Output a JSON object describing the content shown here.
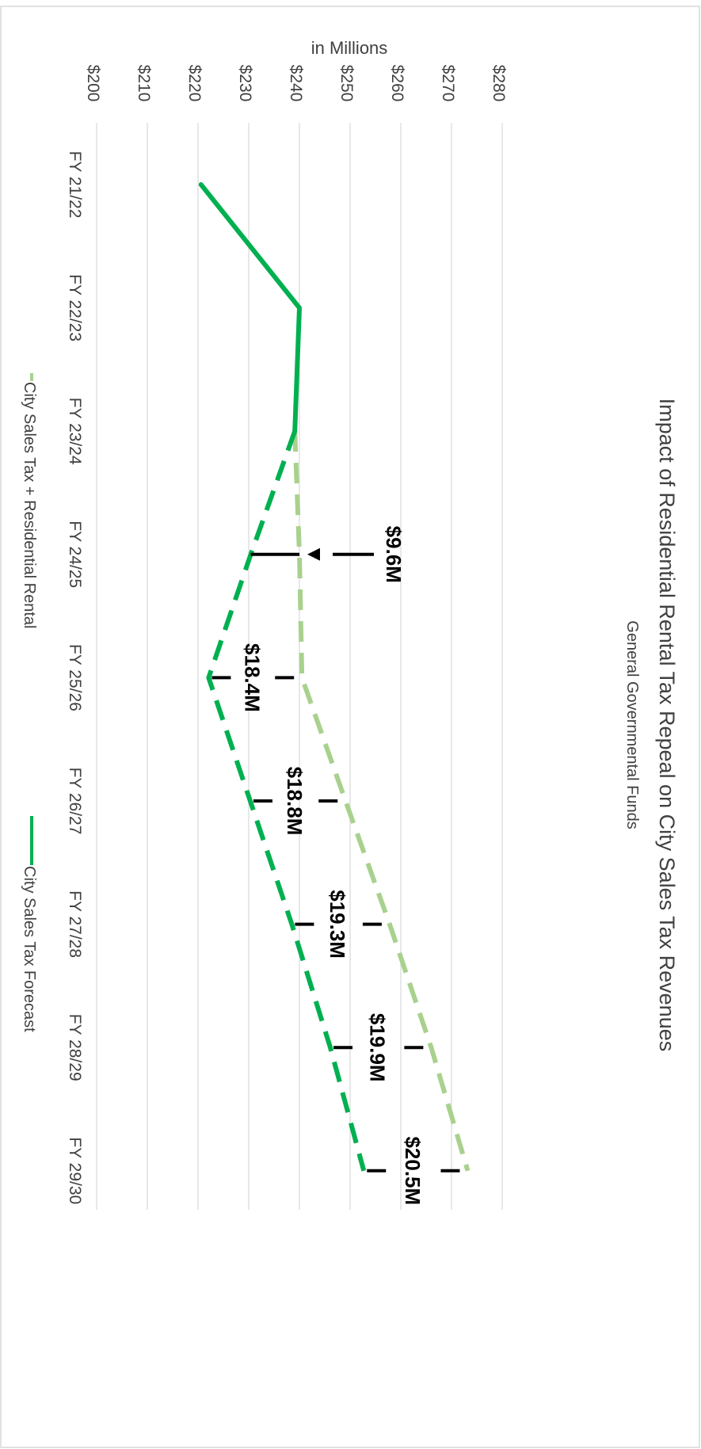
{
  "chart_data": {
    "type": "line",
    "orientation": "rotated-90-clockwise",
    "title": "Impact of Residential Rental Tax Repeal on City Sales Tax Revenues",
    "subtitle": "General Governmental Funds",
    "ylabel": "in Millions",
    "xlabel": "",
    "categories": [
      "FY 21/22",
      "FY 22/23",
      "FY 23/24",
      "FY 24/25",
      "FY 25/26",
      "FY 26/27",
      "FY 27/28",
      "FY 28/29",
      "FY 29/30"
    ],
    "y_ticks": [
      "$200",
      "$210",
      "$220",
      "$230",
      "$240",
      "$250",
      "$260",
      "$270",
      "$280"
    ],
    "y_tick_values": [
      200,
      210,
      220,
      230,
      240,
      250,
      260,
      270,
      280
    ],
    "ylim": [
      200,
      280
    ],
    "grid": true,
    "legend_position": "bottom",
    "series": [
      {
        "name": "City Sales Tax + Residential Rental",
        "style": "dashed",
        "color": "#a9d18e",
        "values": [
          null,
          null,
          239.1,
          240.0,
          240.5,
          249.1,
          257.8,
          266.0,
          273.2
        ]
      },
      {
        "name": "City Sales Tax Forecast",
        "style": "solid-then-dashed",
        "color": "#00b050",
        "solid_until_index": 2,
        "values": [
          220.6,
          240.0,
          239.1,
          230.4,
          222.1,
          230.3,
          238.5,
          246.1,
          252.7
        ]
      }
    ],
    "annotations": [
      {
        "label": "$9.6M",
        "category_index": 3,
        "arrow": true
      },
      {
        "label": "$18.4M",
        "category_index": 4
      },
      {
        "label": "$18.8M",
        "category_index": 5
      },
      {
        "label": "$19.3M",
        "category_index": 6
      },
      {
        "label": "$19.9M",
        "category_index": 7
      },
      {
        "label": "$20.5M",
        "category_index": 8
      }
    ]
  },
  "colors": {
    "light_green": "#a9d18e",
    "dark_green": "#00b050",
    "grid": "#d9d9d9",
    "text": "#404040",
    "annotation": "#000000",
    "frame": "#d9d9d9"
  }
}
